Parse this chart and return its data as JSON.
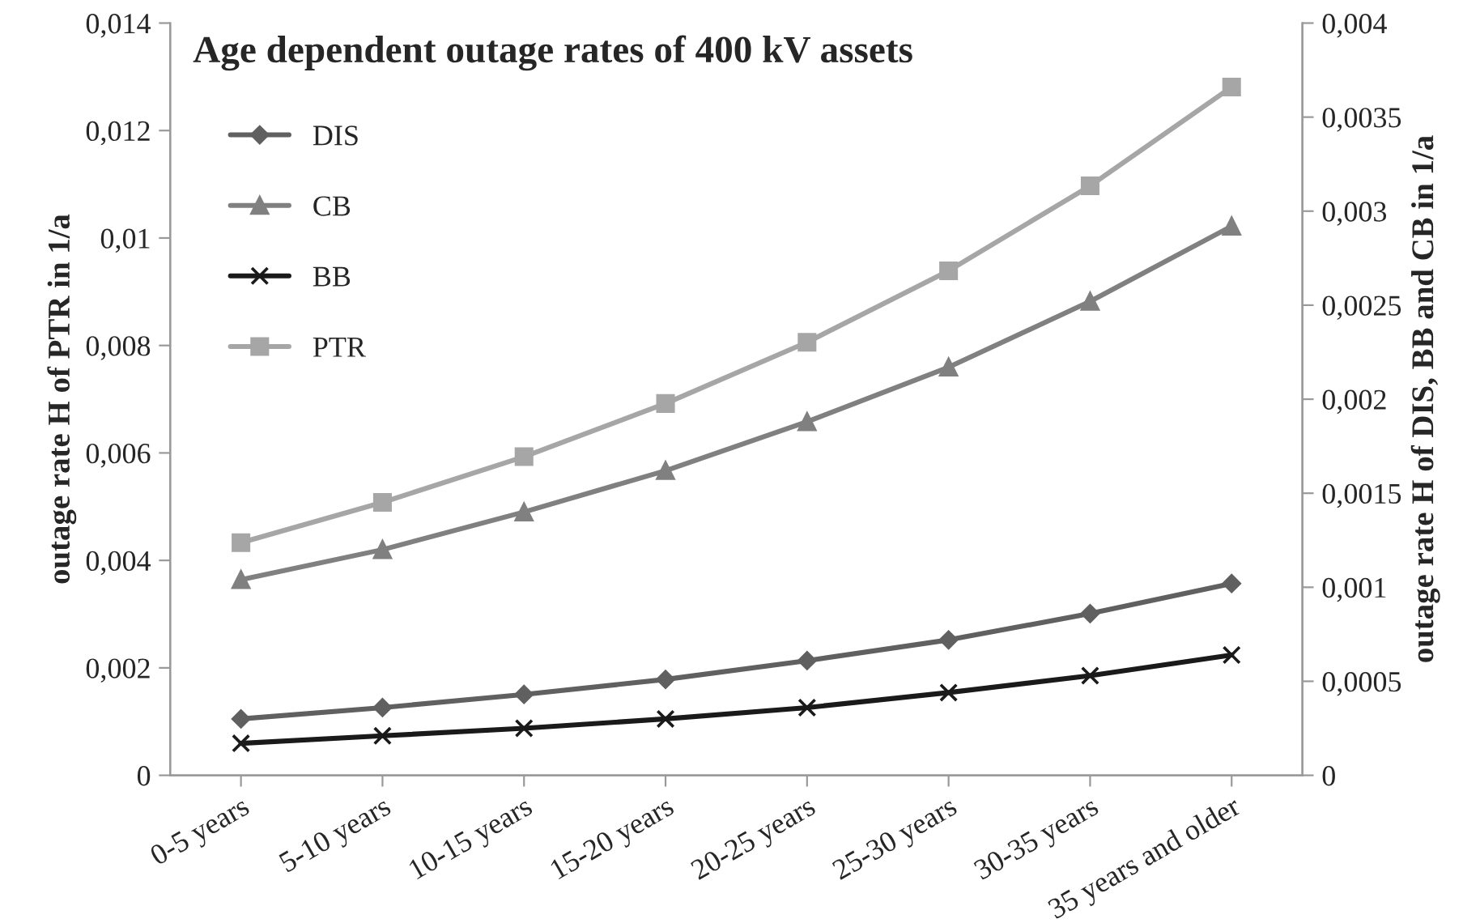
{
  "chart_data": {
    "type": "line",
    "title": "Age dependent outage rates of 400 kV assets",
    "ylabel": "outage rate H of PTR in 1/a",
    "y2label": "outage rate H of DIS, BB and CB in 1/a",
    "categories": [
      "0-5 years",
      "5-10 years",
      "10-15 years",
      "15-20 years",
      "20-25 years",
      "25-30 years",
      "30-35 years",
      "35 years and older"
    ],
    "series": [
      {
        "name": "DIS",
        "color": "#606060",
        "marker": "diamond",
        "axis": "y2",
        "values": [
          0.0003,
          0.00036,
          0.00043,
          0.00051,
          0.00061,
          0.00072,
          0.00086,
          0.00102
        ]
      },
      {
        "name": "CB",
        "color": "#808080",
        "marker": "triangle",
        "axis": "y2",
        "values": [
          0.00104,
          0.0012,
          0.0014,
          0.00162,
          0.00188,
          0.00217,
          0.00252,
          0.00292
        ]
      },
      {
        "name": "BB",
        "color": "#1a1a1a",
        "marker": "cross",
        "axis": "y2",
        "values": [
          0.00017,
          0.00021,
          0.00025,
          0.0003,
          0.00036,
          0.00044,
          0.00053,
          0.00064
        ]
      },
      {
        "name": "PTR",
        "color": "#a6a6a6",
        "marker": "square",
        "values": [
          0.00433,
          0.00508,
          0.00593,
          0.00692,
          0.00806,
          0.00939,
          0.01097,
          0.01281
        ]
      }
    ],
    "ylim": [
      0,
      0.014
    ],
    "yticks": [
      {
        "value": 0,
        "label": "0"
      },
      {
        "value": 0.002,
        "label": "0,002"
      },
      {
        "value": 0.004,
        "label": "0,004"
      },
      {
        "value": 0.006,
        "label": "0,006"
      },
      {
        "value": 0.008,
        "label": "0,008"
      },
      {
        "value": 0.01,
        "label": "0,01"
      },
      {
        "value": 0.012,
        "label": "0,012"
      },
      {
        "value": 0.014,
        "label": "0,014"
      }
    ],
    "y2lim": [
      0,
      0.004
    ],
    "y2ticks": [
      {
        "value": 0,
        "label": "0"
      },
      {
        "value": 0.0005,
        "label": "0,0005"
      },
      {
        "value": 0.001,
        "label": "0,001"
      },
      {
        "value": 0.0015,
        "label": "0,0015"
      },
      {
        "value": 0.002,
        "label": "0,002"
      },
      {
        "value": 0.0025,
        "label": "0,0025"
      },
      {
        "value": 0.003,
        "label": "0,003"
      },
      {
        "value": 0.0035,
        "label": "0,0035"
      },
      {
        "value": 0.004,
        "label": "0,004"
      }
    ],
    "legend": "top left",
    "grid": false,
    "line_style": "solid"
  }
}
